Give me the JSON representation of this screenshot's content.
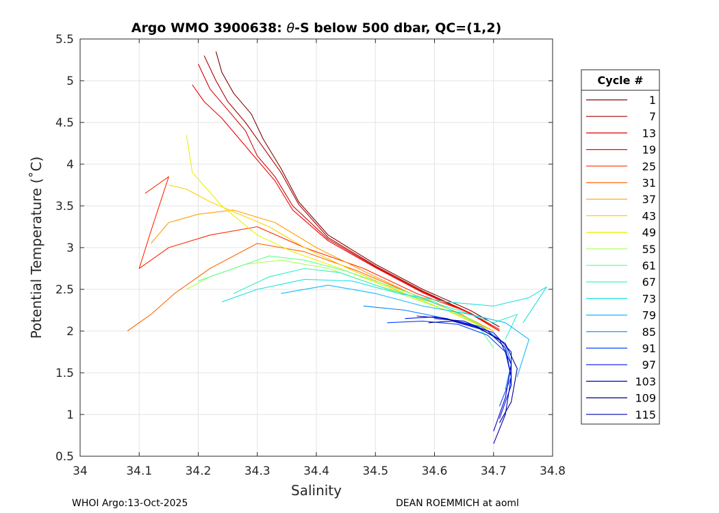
{
  "chart_data": {
    "type": "line",
    "title_prefix": "Argo WMO 3900638: ",
    "title_theta": "θ",
    "title_suffix": "-S below 500 dbar,  QC=(1,2)",
    "xlabel": "Salinity",
    "ylabel": "Potential Temperature (˚C)",
    "xlim": [
      34.0,
      34.8
    ],
    "ylim": [
      0.5,
      5.5
    ],
    "xticks": [
      "34",
      "34.1",
      "34.2",
      "34.3",
      "34.4",
      "34.5",
      "34.6",
      "34.7",
      "34.8"
    ],
    "yticks": [
      "0.5",
      "1",
      "1.5",
      "2",
      "2.5",
      "3",
      "3.5",
      "4",
      "4.5",
      "5",
      "5.5"
    ],
    "grid": true,
    "legend_placement": "outside-right",
    "legend_title": "Cycle #",
    "legend_entries": [
      {
        "label": "1",
        "color": "#800000"
      },
      {
        "label": "7",
        "color": "#a80000"
      },
      {
        "label": "13",
        "color": "#d00000"
      },
      {
        "label": "19",
        "color": "#f00000"
      },
      {
        "label": "25",
        "color": "#ff2800"
      },
      {
        "label": "31",
        "color": "#ff6400"
      },
      {
        "label": "37",
        "color": "#ffa000"
      },
      {
        "label": "43",
        "color": "#ffd000"
      },
      {
        "label": "49",
        "color": "#e8f000"
      },
      {
        "label": "55",
        "color": "#a8ff50"
      },
      {
        "label": "61",
        "color": "#60ff90"
      },
      {
        "label": "67",
        "color": "#30f0c0"
      },
      {
        "label": "73",
        "color": "#20e0e0"
      },
      {
        "label": "79",
        "color": "#10b8ff"
      },
      {
        "label": "85",
        "color": "#0080ff"
      },
      {
        "label": "91",
        "color": "#0040ff"
      },
      {
        "label": "97",
        "color": "#0010f0"
      },
      {
        "label": "103",
        "color": "#0000c0"
      },
      {
        "label": "109",
        "color": "#000090"
      },
      {
        "label": "115",
        "color": "#0000b0"
      }
    ],
    "series": [
      {
        "name": "1",
        "x": [
          34.23,
          34.24,
          34.26,
          34.29,
          34.31,
          34.34,
          34.37,
          34.42,
          34.5,
          34.58,
          34.66,
          34.71
        ],
        "y": [
          5.35,
          5.1,
          4.85,
          4.6,
          4.3,
          3.95,
          3.55,
          3.15,
          2.8,
          2.5,
          2.25,
          2.05
        ]
      },
      {
        "name": "7",
        "x": [
          34.21,
          34.23,
          34.25,
          34.28,
          34.31,
          34.34,
          34.37,
          34.42,
          34.5,
          34.58,
          34.66,
          34.71
        ],
        "y": [
          5.3,
          5.0,
          4.75,
          4.5,
          4.2,
          3.9,
          3.52,
          3.12,
          2.78,
          2.48,
          2.22,
          2.02
        ]
      },
      {
        "name": "13",
        "x": [
          34.2,
          34.22,
          34.25,
          34.28,
          34.3,
          34.33,
          34.36,
          34.42,
          34.5,
          34.58,
          34.66,
          34.71
        ],
        "y": [
          5.2,
          4.9,
          4.65,
          4.4,
          4.1,
          3.85,
          3.5,
          3.1,
          2.77,
          2.47,
          2.22,
          2.0
        ]
      },
      {
        "name": "19",
        "x": [
          34.19,
          34.21,
          34.24,
          34.27,
          34.3,
          34.33,
          34.36,
          34.42,
          34.5,
          34.58,
          34.66,
          34.71
        ],
        "y": [
          4.95,
          4.75,
          4.55,
          4.3,
          4.05,
          3.8,
          3.45,
          3.08,
          2.76,
          2.46,
          2.21,
          2.0
        ]
      },
      {
        "name": "25",
        "x": [
          34.11,
          34.15,
          34.12,
          34.1,
          34.15,
          34.22,
          34.3,
          34.38,
          34.48,
          34.57,
          34.66,
          34.71
        ],
        "y": [
          3.65,
          3.85,
          3.2,
          2.75,
          3.0,
          3.15,
          3.25,
          3.0,
          2.75,
          2.45,
          2.22,
          2.02
        ]
      },
      {
        "name": "31",
        "x": [
          34.08,
          34.12,
          34.16,
          34.22,
          34.3,
          34.38,
          34.47,
          34.56,
          34.64,
          34.7
        ],
        "y": [
          2.0,
          2.2,
          2.45,
          2.75,
          3.05,
          2.95,
          2.72,
          2.45,
          2.22,
          2.0
        ]
      },
      {
        "name": "37",
        "x": [
          34.12,
          34.15,
          34.2,
          34.26,
          34.33,
          34.4,
          34.48,
          34.56,
          34.64,
          34.7
        ],
        "y": [
          3.05,
          3.3,
          3.4,
          3.45,
          3.3,
          3.0,
          2.72,
          2.45,
          2.22,
          2.0
        ]
      },
      {
        "name": "43",
        "x": [
          34.15,
          34.18,
          34.22,
          34.27,
          34.32,
          34.38,
          34.46,
          34.55,
          34.63,
          34.7
        ],
        "y": [
          3.75,
          3.7,
          3.55,
          3.4,
          3.25,
          3.0,
          2.73,
          2.45,
          2.22,
          2.0
        ]
      },
      {
        "name": "49",
        "x": [
          34.18,
          34.19,
          34.24,
          34.3,
          34.36,
          34.44,
          34.53,
          34.62,
          34.69
        ],
        "y": [
          4.35,
          3.9,
          3.5,
          3.15,
          2.95,
          2.75,
          2.5,
          2.25,
          2.02
        ]
      },
      {
        "name": "55",
        "x": [
          34.18,
          34.22,
          34.28,
          34.34,
          34.42,
          34.5,
          34.58,
          34.66,
          34.7
        ],
        "y": [
          2.5,
          2.65,
          2.8,
          2.85,
          2.75,
          2.55,
          2.35,
          2.15,
          1.95
        ]
      },
      {
        "name": "61",
        "x": [
          34.2,
          34.26,
          34.32,
          34.38,
          34.45,
          34.52,
          34.6,
          34.67,
          34.7
        ],
        "y": [
          2.6,
          2.75,
          2.9,
          2.85,
          2.72,
          2.55,
          2.35,
          2.1,
          1.8
        ]
      },
      {
        "name": "67",
        "x": [
          34.26,
          34.32,
          34.38,
          34.44,
          34.5,
          34.57,
          34.64,
          34.7,
          34.74,
          34.72
        ],
        "y": [
          2.45,
          2.65,
          2.75,
          2.7,
          2.55,
          2.4,
          2.25,
          2.1,
          2.2,
          1.9
        ]
      },
      {
        "name": "73",
        "x": [
          34.24,
          34.3,
          34.38,
          34.46,
          34.54,
          34.62,
          34.7,
          34.76,
          34.79,
          34.75
        ],
        "y": [
          2.35,
          2.5,
          2.62,
          2.6,
          2.45,
          2.35,
          2.3,
          2.4,
          2.53,
          2.1
        ]
      },
      {
        "name": "79",
        "x": [
          34.34,
          34.42,
          34.5,
          34.58,
          34.66,
          34.72,
          34.76,
          34.74
        ],
        "y": [
          2.45,
          2.55,
          2.45,
          2.3,
          2.2,
          2.1,
          1.9,
          1.45
        ]
      },
      {
        "name": "85",
        "x": [
          34.48,
          34.55,
          34.62,
          34.68,
          34.72,
          34.73,
          34.72
        ],
        "y": [
          2.3,
          2.25,
          2.15,
          2.05,
          1.85,
          1.6,
          1.3
        ]
      },
      {
        "name": "91",
        "x": [
          34.52,
          34.58,
          34.64,
          34.69,
          34.72,
          34.73,
          34.71
        ],
        "y": [
          2.1,
          2.12,
          2.08,
          1.95,
          1.75,
          1.45,
          1.1
        ]
      },
      {
        "name": "97",
        "x": [
          34.55,
          34.6,
          34.65,
          34.7,
          34.73,
          34.73,
          34.71
        ],
        "y": [
          2.15,
          2.17,
          2.1,
          1.98,
          1.75,
          1.35,
          0.95
        ]
      },
      {
        "name": "103",
        "x": [
          34.57,
          34.62,
          34.67,
          34.71,
          34.73,
          34.72,
          34.7
        ],
        "y": [
          2.18,
          2.15,
          2.05,
          1.9,
          1.6,
          1.2,
          0.8
        ]
      },
      {
        "name": "109",
        "x": [
          34.59,
          34.63,
          34.68,
          34.72,
          34.74,
          34.73,
          34.71
        ],
        "y": [
          2.1,
          2.12,
          2.02,
          1.85,
          1.55,
          1.15,
          0.9
        ]
      },
      {
        "name": "115",
        "x": [
          34.6,
          34.65,
          34.69,
          34.72,
          34.73,
          34.72,
          34.7
        ],
        "y": [
          2.15,
          2.12,
          2.0,
          1.8,
          1.45,
          1.0,
          0.65
        ]
      }
    ]
  },
  "footer": {
    "left": "WHOI Argo:13-Oct-2025",
    "right": "DEAN ROEMMICH at aoml"
  }
}
